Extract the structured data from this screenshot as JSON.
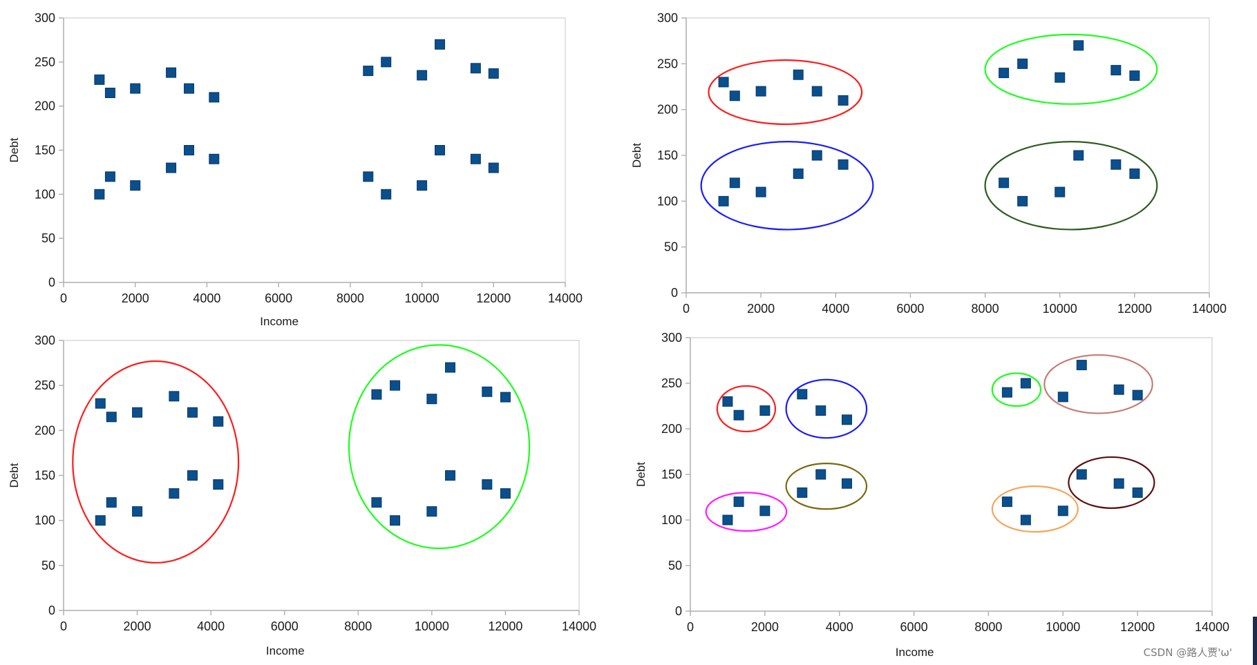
{
  "colors": {
    "marker": "#0b4f8c",
    "frame": "#d9d9d9",
    "axis_line": "#b3b3b3",
    "background": "#ffffff"
  },
  "watermark": "CSDN @路人贾'ω'",
  "chart_data": [
    {
      "type": "scatter",
      "title": "",
      "xlabel": "Income",
      "ylabel": "Debt",
      "xlim": [
        0,
        14000
      ],
      "ylim": [
        0,
        300
      ],
      "xticks": [
        0,
        2000,
        4000,
        6000,
        8000,
        10000,
        12000,
        14000
      ],
      "yticks": [
        0,
        50,
        100,
        150,
        200,
        250,
        300
      ],
      "grid": false,
      "legend": "none",
      "points": {
        "x": [
          1000,
          1300,
          2000,
          3000,
          3500,
          4200,
          1000,
          1300,
          2000,
          3000,
          3500,
          4200,
          8500,
          9000,
          10000,
          10500,
          11500,
          12000,
          8500,
          9000,
          10000,
          10500,
          11500,
          12000
        ],
        "y": [
          230,
          215,
          220,
          238,
          220,
          210,
          100,
          120,
          110,
          130,
          150,
          140,
          240,
          250,
          235,
          270,
          243,
          237,
          120,
          100,
          110,
          150,
          140,
          130
        ]
      },
      "clusters": []
    },
    {
      "type": "scatter",
      "title": "",
      "xlabel": "",
      "ylabel": "Debt",
      "xlim": [
        0,
        14000
      ],
      "ylim": [
        0,
        300
      ],
      "xticks": [
        0,
        2000,
        4000,
        6000,
        8000,
        10000,
        12000,
        14000
      ],
      "yticks": [
        0,
        50,
        100,
        150,
        200,
        250,
        300
      ],
      "grid": false,
      "legend": "none",
      "points": {
        "x": [
          1000,
          1300,
          2000,
          3000,
          3500,
          4200,
          1000,
          1300,
          2000,
          3000,
          3500,
          4200,
          8500,
          9000,
          10000,
          10500,
          11500,
          12000,
          8500,
          9000,
          10000,
          10500,
          11500,
          12000
        ],
        "y": [
          230,
          215,
          220,
          238,
          220,
          210,
          100,
          120,
          110,
          130,
          150,
          140,
          240,
          250,
          235,
          270,
          243,
          237,
          120,
          100,
          110,
          150,
          140,
          130
        ]
      },
      "clusters": [
        {
          "color": "#ff1a1a",
          "cx": 2650,
          "cy": 219,
          "rx": 2050,
          "ry": 35
        },
        {
          "color": "#1a1aff",
          "cx": 2700,
          "cy": 117,
          "rx": 2300,
          "ry": 48
        },
        {
          "color": "#1aff1a",
          "cx": 10300,
          "cy": 244,
          "rx": 2300,
          "ry": 38
        },
        {
          "color": "#2e5a1f",
          "cx": 10300,
          "cy": 117,
          "rx": 2300,
          "ry": 48
        }
      ]
    },
    {
      "type": "scatter",
      "title": "",
      "xlabel": "Income",
      "ylabel": "Debt",
      "xlim": [
        0,
        14000
      ],
      "ylim": [
        0,
        300
      ],
      "xticks": [
        0,
        2000,
        4000,
        6000,
        8000,
        10000,
        12000,
        14000
      ],
      "yticks": [
        0,
        50,
        100,
        150,
        200,
        250,
        300
      ],
      "grid": false,
      "legend": "none",
      "points": {
        "x": [
          1000,
          1300,
          2000,
          3000,
          3500,
          4200,
          1000,
          1300,
          2000,
          3000,
          3500,
          4200,
          8500,
          9000,
          10000,
          10500,
          11500,
          12000,
          8500,
          9000,
          10000,
          10500,
          11500,
          12000
        ],
        "y": [
          230,
          215,
          220,
          238,
          220,
          210,
          100,
          120,
          110,
          130,
          150,
          140,
          240,
          250,
          235,
          270,
          243,
          237,
          120,
          100,
          110,
          150,
          140,
          130
        ]
      },
      "clusters": [
        {
          "color": "#ff1a1a",
          "cx": 2500,
          "cy": 165,
          "rx": 2250,
          "ry": 112
        },
        {
          "color": "#1aff1a",
          "cx": 10200,
          "cy": 182,
          "rx": 2450,
          "ry": 113
        }
      ]
    },
    {
      "type": "scatter",
      "title": "",
      "xlabel": "Income",
      "ylabel": "Debt",
      "xlim": [
        0,
        14000
      ],
      "ylim": [
        0,
        300
      ],
      "xticks": [
        0,
        2000,
        4000,
        6000,
        8000,
        10000,
        12000,
        14000
      ],
      "yticks": [
        0,
        50,
        100,
        150,
        200,
        250,
        300
      ],
      "grid": false,
      "legend": "none",
      "points": {
        "x": [
          1000,
          1300,
          2000,
          3000,
          3500,
          4200,
          1000,
          1300,
          2000,
          3000,
          3500,
          4200,
          8500,
          9000,
          10000,
          10500,
          11500,
          12000,
          8500,
          9000,
          10000,
          10500,
          11500,
          12000
        ],
        "y": [
          230,
          215,
          220,
          238,
          220,
          210,
          100,
          120,
          110,
          130,
          150,
          140,
          240,
          250,
          235,
          270,
          243,
          237,
          120,
          100,
          110,
          150,
          140,
          130
        ]
      },
      "clusters": [
        {
          "color": "#ff1a1a",
          "cx": 1500,
          "cy": 222,
          "rx": 780,
          "ry": 25
        },
        {
          "color": "#1a1aff",
          "cx": 3650,
          "cy": 222,
          "rx": 1080,
          "ry": 32
        },
        {
          "color": "#ff1aff",
          "cx": 1500,
          "cy": 109,
          "rx": 1080,
          "ry": 21
        },
        {
          "color": "#7a6a12",
          "cx": 3650,
          "cy": 137,
          "rx": 1080,
          "ry": 25
        },
        {
          "color": "#1aff1a",
          "cx": 8750,
          "cy": 243,
          "rx": 650,
          "ry": 18
        },
        {
          "color": "#c57b74",
          "cx": 10950,
          "cy": 249,
          "rx": 1450,
          "ry": 32
        },
        {
          "color": "#5a1010",
          "cx": 11300,
          "cy": 141,
          "rx": 1150,
          "ry": 28
        },
        {
          "color": "#f5a55c",
          "cx": 9250,
          "cy": 112,
          "rx": 1150,
          "ry": 25
        }
      ]
    }
  ]
}
